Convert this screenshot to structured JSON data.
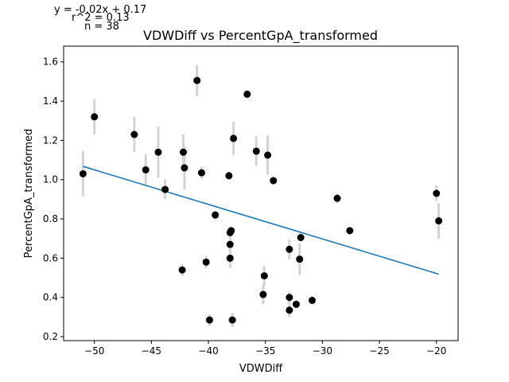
{
  "chart_data": {
    "type": "scatter",
    "title": "VDWDiff vs PercentGpA_transformed",
    "xlabel": "VDWDiff",
    "ylabel": "PercentGpA_transformed",
    "annotations": {
      "equation": "y = -0.02x + 0.17",
      "r2": "r^2 = 0.13",
      "n": "n = 38"
    },
    "xlim": [
      -52.7,
      -18.1
    ],
    "ylim": [
      0.18,
      1.68
    ],
    "xticks": [
      -50,
      -45,
      -40,
      -35,
      -30,
      -25,
      -20
    ],
    "xtick_labels": [
      "−50",
      "−45",
      "−40",
      "−35",
      "−30",
      "−25",
      "−20"
    ],
    "yticks": [
      0.2,
      0.4,
      0.6,
      0.8,
      1.0,
      1.2,
      1.4,
      1.6
    ],
    "ytick_labels": [
      "0.2",
      "0.4",
      "0.6",
      "0.8",
      "1.0",
      "1.2",
      "1.4",
      "1.6"
    ],
    "grid": false,
    "fit_line": {
      "slope": -0.0176,
      "intercept": 0.17,
      "x_range": [
        -51.0,
        -19.8
      ],
      "color": "#1f77b4"
    },
    "point_color": "#000000",
    "errorbar_color": "#d3d3d3",
    "points": [
      {
        "x": -51.0,
        "y": 1.03,
        "err": 0.115
      },
      {
        "x": -50.0,
        "y": 1.32,
        "err": 0.09
      },
      {
        "x": -46.5,
        "y": 1.23,
        "err": 0.09
      },
      {
        "x": -45.5,
        "y": 1.05,
        "err": 0.08
      },
      {
        "x": -44.4,
        "y": 1.14,
        "err": 0.13
      },
      {
        "x": -43.8,
        "y": 0.95,
        "err": 0.05
      },
      {
        "x": -42.3,
        "y": 0.54,
        "err": 0.03
      },
      {
        "x": -42.2,
        "y": 1.14,
        "err": 0.09
      },
      {
        "x": -42.1,
        "y": 1.06,
        "err": 0.11
      },
      {
        "x": -41.0,
        "y": 1.505,
        "err": 0.08
      },
      {
        "x": -40.6,
        "y": 1.035,
        "err": 0.03
      },
      {
        "x": -40.2,
        "y": 0.58,
        "err": 0.03
      },
      {
        "x": -39.9,
        "y": 0.285,
        "err": 0.03
      },
      {
        "x": -39.4,
        "y": 0.82,
        "err": 0.02
      },
      {
        "x": -38.2,
        "y": 1.02,
        "err": 0.02
      },
      {
        "x": -38.1,
        "y": 0.73,
        "err": 0.02
      },
      {
        "x": -38.1,
        "y": 0.67,
        "err": 0.05
      },
      {
        "x": -38.1,
        "y": 0.6,
        "err": 0.05
      },
      {
        "x": -38.0,
        "y": 0.74,
        "err": 0.02
      },
      {
        "x": -37.9,
        "y": 0.285,
        "err": 0.035
      },
      {
        "x": -37.8,
        "y": 1.21,
        "err": 0.085
      },
      {
        "x": -36.6,
        "y": 1.435,
        "err": 0.02
      },
      {
        "x": -35.8,
        "y": 1.145,
        "err": 0.075
      },
      {
        "x": -35.1,
        "y": 0.51,
        "err": 0.05
      },
      {
        "x": -35.2,
        "y": 0.415,
        "err": 0.05
      },
      {
        "x": -34.8,
        "y": 1.125,
        "err": 0.1
      },
      {
        "x": -34.3,
        "y": 0.995,
        "err": 0.02
      },
      {
        "x": -32.9,
        "y": 0.645,
        "err": 0.05
      },
      {
        "x": -32.9,
        "y": 0.4,
        "err": 0.03
      },
      {
        "x": -32.9,
        "y": 0.335,
        "err": 0.035
      },
      {
        "x": -32.3,
        "y": 0.365,
        "err": 0.02
      },
      {
        "x": -32.0,
        "y": 0.595,
        "err": 0.08
      },
      {
        "x": -31.9,
        "y": 0.705,
        "err": 0.02
      },
      {
        "x": -30.9,
        "y": 0.385,
        "err": 0.02
      },
      {
        "x": -28.7,
        "y": 0.905,
        "err": 0.025
      },
      {
        "x": -27.6,
        "y": 0.74,
        "err": 0.02
      },
      {
        "x": -20.0,
        "y": 0.93,
        "err": 0.04
      },
      {
        "x": -19.8,
        "y": 0.79,
        "err": 0.09
      }
    ]
  }
}
